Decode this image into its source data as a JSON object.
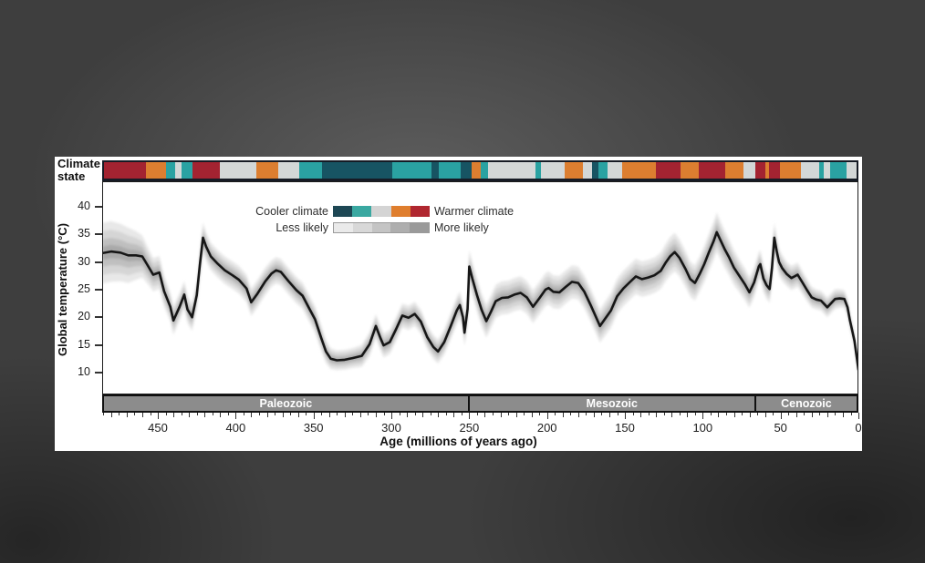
{
  "panel": {
    "climate_state_label": {
      "line1": "Climate",
      "line2": "state"
    }
  },
  "legend": {
    "cooler_label": "Cooler climate",
    "warmer_label": "Warmer climate",
    "less_label": "Less likely",
    "more_label": "More likely",
    "climate_scale": [
      "#1d4754",
      "#3aa8a1",
      "#d4d4d4",
      "#df7e2e",
      "#b02730"
    ],
    "likelihood_scale": [
      "#eaeaea",
      "#d8d8d8",
      "#c4c4c4",
      "#aeaeae",
      "#9a9a9a"
    ]
  },
  "colors": {
    "crimson": "#a32331",
    "orange": "#dc7e30",
    "teal": "#2aa2a2",
    "dark_teal": "#175463",
    "light_gray": "#d3d7d7",
    "era_bar": "#8c8c8c",
    "line": "#161616",
    "band_layers": [
      "#e4e4e4",
      "#d2d2d2",
      "#bcbcbc",
      "#a5a5a5"
    ]
  },
  "climate_bar": {
    "description": "Climate state strip across top, oldest (left) to present (right)",
    "segments": [
      [
        "crimson",
        46
      ],
      [
        "orange",
        22
      ],
      [
        "teal",
        10
      ],
      [
        "light_gray",
        7
      ],
      [
        "teal",
        13
      ],
      [
        "crimson",
        30
      ],
      [
        "light_gray",
        40
      ],
      [
        "orange",
        24
      ],
      [
        "light_gray",
        23
      ],
      [
        "teal",
        25
      ],
      [
        "dark_teal",
        78
      ],
      [
        "teal",
        43
      ],
      [
        "dark_teal",
        8
      ],
      [
        "teal",
        24
      ],
      [
        "dark_teal",
        12
      ],
      [
        "orange",
        10
      ],
      [
        "teal",
        8
      ],
      [
        "light_gray",
        52
      ],
      [
        "teal",
        7
      ],
      [
        "light_gray",
        26
      ],
      [
        "orange",
        20
      ],
      [
        "light_gray",
        10
      ],
      [
        "dark_teal",
        7
      ],
      [
        "teal",
        10
      ],
      [
        "light_gray",
        16
      ],
      [
        "orange",
        37
      ],
      [
        "crimson",
        27
      ],
      [
        "orange",
        20
      ],
      [
        "crimson",
        30
      ],
      [
        "orange",
        20
      ],
      [
        "light_gray",
        13
      ],
      [
        "crimson",
        11
      ],
      [
        "orange",
        4
      ],
      [
        "crimson",
        12
      ],
      [
        "orange",
        23
      ],
      [
        "light_gray",
        20
      ],
      [
        "teal",
        5
      ],
      [
        "light_gray",
        7
      ],
      [
        "teal",
        18
      ],
      [
        "light_gray",
        11
      ]
    ]
  },
  "chart_data": {
    "type": "line",
    "title": "",
    "xlabel": "Age (millions of years ago)",
    "ylabel": "Global temperature (°C)",
    "x_axis": {
      "min": 0,
      "max": 486,
      "reversed": true,
      "major_ticks": [
        450,
        400,
        350,
        300,
        250,
        200,
        150,
        100,
        50,
        0
      ],
      "minor_tick_step": 5
    },
    "y_axis": {
      "ticks": [
        40,
        35,
        30,
        25,
        20,
        15,
        10
      ],
      "range_shown": [
        6,
        44.5
      ]
    },
    "grid": false,
    "legend_position": "top-center-inside",
    "eras": [
      {
        "label": "Paleozoic",
        "from": 486,
        "to": 251
      },
      {
        "label": "Mesozoic",
        "from": 251,
        "to": 66
      },
      {
        "label": "Cenozoic",
        "from": 66,
        "to": 0
      }
    ],
    "series": [
      {
        "name": "Global mean temperature with uncertainty band",
        "point_format": [
          "age_Ma",
          "temperature_C",
          "uncertainty_halfwidth_C"
        ],
        "points": [
          [
            486,
            31.6,
            5.5
          ],
          [
            480,
            31.9,
            5.5
          ],
          [
            474,
            31.7,
            5.2
          ],
          [
            469,
            31.2,
            5.0
          ],
          [
            464,
            31.2,
            4.4
          ],
          [
            460,
            31.0,
            3.8
          ],
          [
            457,
            29.6,
            3.4
          ],
          [
            453,
            27.7,
            3.0
          ],
          [
            449,
            28.1,
            3.0
          ],
          [
            446,
            24.7,
            2.8
          ],
          [
            442,
            21.9,
            2.6
          ],
          [
            440,
            19.4,
            2.6
          ],
          [
            436,
            21.9,
            2.5
          ],
          [
            433,
            24.1,
            2.5
          ],
          [
            431,
            21.4,
            2.5
          ],
          [
            428,
            20.0,
            2.5
          ],
          [
            425,
            24.0,
            2.5
          ],
          [
            423,
            29.5,
            2.6
          ],
          [
            421,
            34.4,
            2.8
          ],
          [
            419,
            32.8,
            2.6
          ],
          [
            416,
            31.0,
            2.5
          ],
          [
            412,
            29.8,
            2.5
          ],
          [
            407,
            28.5,
            2.5
          ],
          [
            402,
            27.6,
            2.5
          ],
          [
            398,
            26.8,
            2.5
          ],
          [
            393,
            25.2,
            2.5
          ],
          [
            390,
            22.7,
            2.5
          ],
          [
            386,
            24.3,
            2.5
          ],
          [
            381,
            26.5,
            2.5
          ],
          [
            377,
            27.9,
            2.4
          ],
          [
            374,
            28.5,
            2.4
          ],
          [
            371,
            28.2,
            2.4
          ],
          [
            366,
            26.5,
            2.4
          ],
          [
            361,
            24.9,
            2.4
          ],
          [
            357,
            23.9,
            2.4
          ],
          [
            353,
            21.7,
            2.4
          ],
          [
            349,
            19.6,
            2.4
          ],
          [
            345,
            16.2,
            2.3
          ],
          [
            342,
            13.8,
            2.1
          ],
          [
            339,
            12.5,
            1.9
          ],
          [
            335,
            12.2,
            1.8
          ],
          [
            330,
            12.3,
            1.8
          ],
          [
            325,
            12.6,
            1.8
          ],
          [
            319,
            13.0,
            2.0
          ],
          [
            314,
            15.1,
            2.2
          ],
          [
            310,
            18.4,
            2.2
          ],
          [
            307,
            16.2,
            2.2
          ],
          [
            305,
            14.9,
            2.2
          ],
          [
            301,
            15.5,
            2.2
          ],
          [
            297,
            17.8,
            2.2
          ],
          [
            293,
            20.3,
            2.2
          ],
          [
            289,
            19.9,
            2.2
          ],
          [
            285,
            20.6,
            2.2
          ],
          [
            281,
            19.2,
            2.2
          ],
          [
            277,
            16.4,
            2.2
          ],
          [
            273,
            14.6,
            2.2
          ],
          [
            270,
            13.8,
            2.2
          ],
          [
            266,
            15.5,
            2.3
          ],
          [
            262,
            18.3,
            2.4
          ],
          [
            258,
            21.2,
            2.5
          ],
          [
            256,
            22.2,
            2.5
          ],
          [
            254,
            20.0,
            2.5
          ],
          [
            253,
            17.2,
            2.5
          ],
          [
            251,
            21.5,
            2.8
          ],
          [
            250,
            29.2,
            3.0
          ],
          [
            248,
            27.0,
            3.0
          ],
          [
            245,
            24.0,
            3.0
          ],
          [
            242,
            21.3,
            3.0
          ],
          [
            239,
            19.3,
            3.0
          ],
          [
            236,
            21.0,
            3.0
          ],
          [
            233,
            22.9,
            3.0
          ],
          [
            229,
            23.5,
            3.0
          ],
          [
            225,
            23.6,
            3.0
          ],
          [
            221,
            24.1,
            3.0
          ],
          [
            217,
            24.4,
            3.0
          ],
          [
            213,
            23.6,
            3.0
          ],
          [
            209,
            21.9,
            3.0
          ],
          [
            205,
            23.4,
            3.0
          ],
          [
            201,
            25.0,
            3.0
          ],
          [
            199,
            25.3,
            3.0
          ],
          [
            196,
            24.6,
            3.0
          ],
          [
            192,
            24.5,
            3.0
          ],
          [
            188,
            25.5,
            3.0
          ],
          [
            184,
            26.4,
            3.0
          ],
          [
            180,
            26.2,
            3.0
          ],
          [
            176,
            24.6,
            3.0
          ],
          [
            172,
            22.2,
            3.0
          ],
          [
            169,
            20.3,
            3.0
          ],
          [
            166,
            18.4,
            3.0
          ],
          [
            163,
            19.6,
            3.1
          ],
          [
            159,
            21.2,
            3.2
          ],
          [
            155,
            23.8,
            3.2
          ],
          [
            151,
            25.2,
            3.2
          ],
          [
            147,
            26.3,
            3.2
          ],
          [
            143,
            27.4,
            3.2
          ],
          [
            139,
            26.9,
            3.2
          ],
          [
            135,
            27.2,
            3.2
          ],
          [
            131,
            27.6,
            3.2
          ],
          [
            127,
            28.4,
            3.3
          ],
          [
            124,
            29.8,
            3.4
          ],
          [
            121,
            31.0,
            3.5
          ],
          [
            118,
            31.8,
            3.5
          ],
          [
            115,
            30.8,
            3.4
          ],
          [
            111,
            28.7,
            3.3
          ],
          [
            108,
            26.9,
            3.2
          ],
          [
            105,
            26.2,
            3.2
          ],
          [
            102,
            27.8,
            3.2
          ],
          [
            99,
            29.6,
            3.3
          ],
          [
            96,
            31.8,
            3.4
          ],
          [
            93,
            33.8,
            3.5
          ],
          [
            91,
            35.4,
            3.6
          ],
          [
            89,
            34.2,
            3.5
          ],
          [
            86,
            32.4,
            3.4
          ],
          [
            83,
            30.8,
            3.3
          ],
          [
            80,
            29.0,
            3.2
          ],
          [
            77,
            27.7,
            3.0
          ],
          [
            73,
            26.0,
            2.9
          ],
          [
            70,
            24.5,
            2.8
          ],
          [
            67,
            26.3,
            2.7
          ],
          [
            64,
            29.2,
            2.6
          ],
          [
            63,
            29.6,
            2.6
          ],
          [
            61,
            27.0,
            2.5
          ],
          [
            59,
            25.8,
            2.5
          ],
          [
            57,
            25.1,
            2.5
          ],
          [
            55.5,
            29.0,
            2.7
          ],
          [
            54,
            34.4,
            2.8
          ],
          [
            52.5,
            32.0,
            2.6
          ],
          [
            51,
            30.0,
            2.5
          ],
          [
            49,
            28.9,
            2.4
          ],
          [
            46,
            27.8,
            2.2
          ],
          [
            43,
            27.1,
            2.2
          ],
          [
            41,
            27.4,
            2.2
          ],
          [
            39,
            27.7,
            2.2
          ],
          [
            36,
            26.3,
            2.1
          ],
          [
            33,
            24.9,
            2.0
          ],
          [
            30,
            23.6,
            1.9
          ],
          [
            27,
            23.2,
            1.8
          ],
          [
            24,
            23.0,
            1.8
          ],
          [
            22,
            22.4,
            1.8
          ],
          [
            20,
            21.8,
            1.8
          ],
          [
            18,
            22.4,
            1.8
          ],
          [
            15,
            23.3,
            1.8
          ],
          [
            12,
            23.4,
            1.7
          ],
          [
            9,
            23.3,
            1.6
          ],
          [
            7,
            21.8,
            1.6
          ],
          [
            5.5,
            19.5,
            1.5
          ],
          [
            4,
            17.6,
            1.5
          ],
          [
            2.5,
            15.7,
            1.4
          ],
          [
            1,
            12.6,
            1.3
          ],
          [
            0,
            10.5,
            1.2
          ]
        ]
      }
    ]
  }
}
